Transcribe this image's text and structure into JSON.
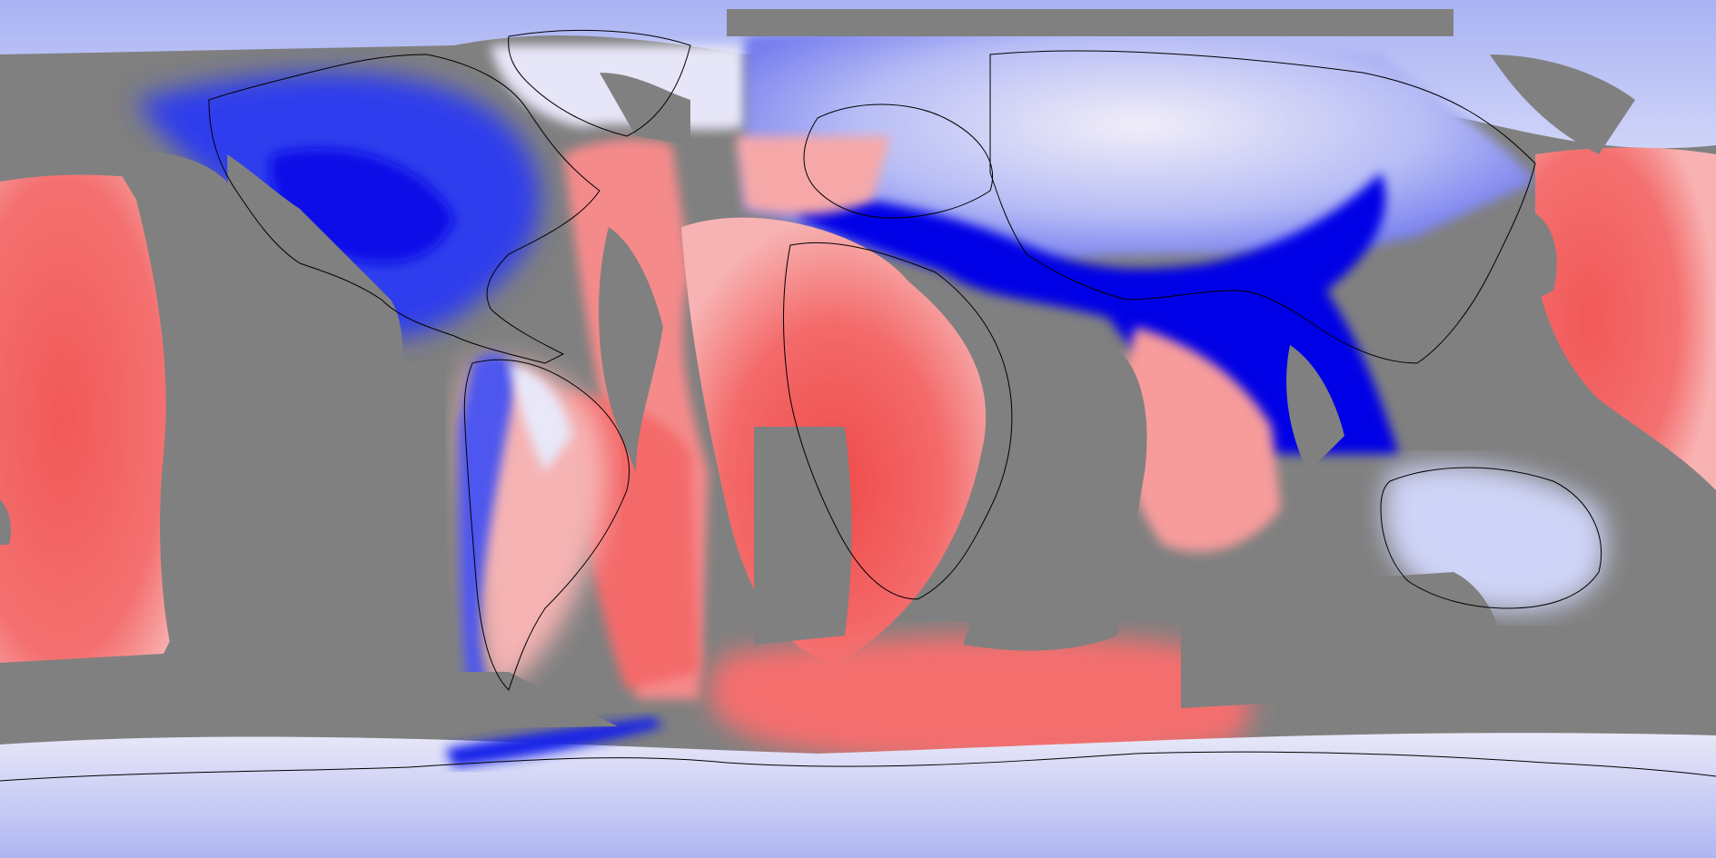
{
  "map": {
    "projection": "equirectangular",
    "extent": {
      "lon": [
        -180,
        180
      ],
      "lat": [
        -90,
        90
      ]
    },
    "colors": {
      "masked": "#808080",
      "strong_negative": "#0000e6",
      "negative": "#5b63ef",
      "weak_negative": "#c8ccf7",
      "neutral": "#f6f4fb",
      "weak_positive": "#f7b3b3",
      "positive": "#f46a6a",
      "strong_positive": "#ef4a4a",
      "coastline": "#000000"
    },
    "legend": null,
    "title": "",
    "text_labels": []
  }
}
